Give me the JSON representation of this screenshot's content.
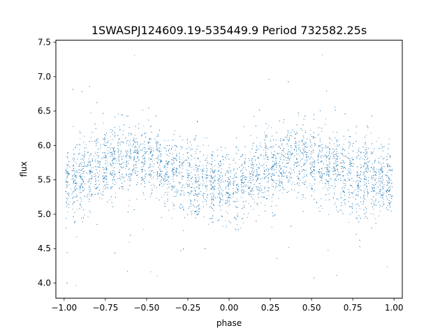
{
  "chart_data": {
    "type": "scatter",
    "title": "1SWASPJ124609.19-535449.9 Period 732582.25s",
    "xlabel": "phase",
    "ylabel": "flux",
    "xlim": [
      -1.05,
      1.05
    ],
    "ylim": [
      3.78,
      7.53
    ],
    "xticks": [
      -1.0,
      -0.75,
      -0.5,
      -0.25,
      0.0,
      0.25,
      0.5,
      0.75,
      1.0
    ],
    "xtick_labels": [
      "−1.00",
      "−0.75",
      "−0.50",
      "−0.25",
      "0.00",
      "0.25",
      "0.50",
      "0.75",
      "1.00"
    ],
    "yticks": [
      4.0,
      4.5,
      5.0,
      5.5,
      6.0,
      6.5,
      7.0,
      7.5
    ],
    "ytick_labels": [
      "4.0",
      "4.5",
      "5.0",
      "5.5",
      "6.0",
      "6.5",
      "7.0",
      "7.5"
    ],
    "grid": false,
    "legend": "none",
    "marker_color": "#1f77b4",
    "series": [
      {
        "x": [
          -0.98,
          -0.97,
          -0.95,
          -0.93,
          -0.92,
          -0.9,
          -0.88,
          -0.86,
          -0.84,
          -0.82,
          -0.8,
          -0.78,
          -0.76,
          -0.74,
          -0.72,
          -0.7,
          -0.68,
          -0.66,
          -0.64,
          -0.62,
          -0.6,
          -0.58,
          -0.56,
          -0.54,
          -0.52,
          -0.5,
          -0.48,
          -0.46,
          -0.44,
          -0.42,
          -0.4,
          -0.38,
          -0.36,
          -0.34,
          -0.32,
          -0.3,
          -0.28,
          -0.26,
          -0.24,
          -0.22,
          -0.2,
          -0.18,
          -0.16,
          -0.14,
          -0.12,
          -0.1,
          -0.08,
          -0.06,
          -0.04,
          -0.02,
          0.0,
          0.02,
          0.04,
          0.06,
          0.08,
          0.1,
          0.12,
          0.14,
          0.16,
          0.18,
          0.2,
          0.22,
          0.24,
          0.26,
          0.28,
          0.3,
          0.32,
          0.34,
          0.36,
          0.38,
          0.4,
          0.42,
          0.44,
          0.46,
          0.48,
          0.5,
          0.52,
          0.54,
          0.56,
          0.58,
          0.6,
          0.62,
          0.64,
          0.66,
          0.68,
          0.7,
          0.72,
          0.74,
          0.76,
          0.78,
          0.8,
          0.82,
          0.84,
          0.86,
          0.88,
          0.9,
          0.92,
          0.94,
          0.96,
          0.98
        ],
        "y": [
          5.45,
          5.5,
          5.4,
          5.52,
          5.55,
          5.48,
          5.6,
          5.62,
          5.58,
          5.65,
          5.7,
          5.68,
          5.72,
          5.75,
          5.7,
          5.78,
          5.8,
          5.76,
          5.74,
          5.8,
          5.82,
          5.78,
          5.85,
          5.8,
          5.76,
          5.82,
          5.78,
          5.7,
          5.72,
          5.68,
          5.65,
          5.62,
          5.66,
          5.6,
          5.58,
          5.62,
          5.55,
          5.5,
          5.52,
          5.48,
          5.5,
          5.46,
          5.44,
          5.48,
          5.45,
          5.42,
          5.5,
          5.4,
          5.45,
          5.48,
          5.42,
          5.46,
          5.4,
          5.38,
          5.48,
          5.52,
          5.5,
          5.55,
          5.6,
          5.58,
          5.62,
          5.66,
          5.7,
          5.68,
          5.72,
          5.75,
          5.7,
          5.78,
          5.8,
          5.76,
          5.82,
          5.8,
          5.84,
          5.78,
          5.82,
          5.8,
          5.76,
          5.78,
          5.72,
          5.7,
          5.68,
          5.66,
          5.62,
          5.65,
          5.6,
          5.58,
          5.55,
          5.6,
          5.52,
          5.5,
          5.55,
          5.48,
          5.52,
          5.5,
          5.46,
          5.5,
          5.48,
          5.45,
          5.5,
          5.52
        ]
      }
    ]
  }
}
